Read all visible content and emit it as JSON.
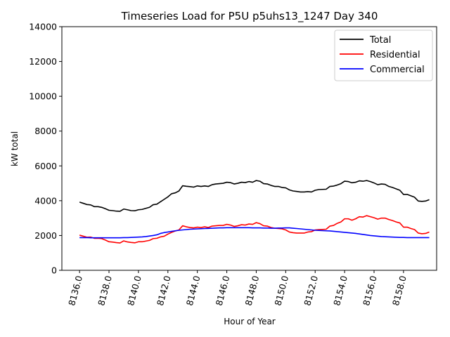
{
  "chart_data": {
    "type": "line",
    "title": "Timeseries Load for P5U p5uhs13_1247  Day 340",
    "xlabel": "Hour of Year",
    "ylabel": "kW total",
    "xlim": [
      8134.8,
      8160.25
    ],
    "ylim": [
      0,
      14000
    ],
    "xticks": [
      8136,
      8138,
      8140,
      8142,
      8144,
      8146,
      8148,
      8150,
      8152,
      8154,
      8156,
      8158
    ],
    "xtick_labels": [
      "8136.0",
      "8138.0",
      "8140.0",
      "8142.0",
      "8144.0",
      "8146.0",
      "8148.0",
      "8150.0",
      "8152.0",
      "8154.0",
      "8156.0",
      "8158.0"
    ],
    "yticks": [
      0,
      2000,
      4000,
      6000,
      8000,
      10000,
      12000,
      14000
    ],
    "ytick_labels": [
      "0",
      "2000",
      "4000",
      "6000",
      "8000",
      "10000",
      "12000",
      "14000"
    ],
    "grid": false,
    "legend_position": "top-right",
    "x_start": 8136,
    "x_step": 0.25,
    "series": [
      {
        "name": "Total",
        "color": "#000000",
        "values": [
          3920,
          3850,
          3780,
          3760,
          3660,
          3660,
          3620,
          3540,
          3450,
          3430,
          3400,
          3390,
          3520,
          3480,
          3430,
          3420,
          3480,
          3500,
          3560,
          3620,
          3770,
          3800,
          3940,
          4080,
          4220,
          4400,
          4450,
          4560,
          4860,
          4830,
          4810,
          4780,
          4850,
          4820,
          4850,
          4820,
          4920,
          4960,
          4980,
          5000,
          5060,
          5040,
          4960,
          5000,
          5060,
          5040,
          5100,
          5060,
          5160,
          5120,
          4980,
          4960,
          4880,
          4820,
          4820,
          4760,
          4740,
          4620,
          4560,
          4530,
          4500,
          4500,
          4520,
          4500,
          4600,
          4640,
          4650,
          4660,
          4820,
          4840,
          4900,
          4980,
          5120,
          5100,
          5030,
          5060,
          5140,
          5120,
          5160,
          5100,
          5020,
          4920,
          4960,
          4940,
          4820,
          4760,
          4680,
          4600,
          4360,
          4360,
          4280,
          4200,
          3980,
          3960,
          3980,
          4060
        ]
      },
      {
        "name": "Residential",
        "color": "#ff0000",
        "values": [
          2020,
          1960,
          1900,
          1910,
          1840,
          1840,
          1820,
          1740,
          1640,
          1620,
          1590,
          1570,
          1690,
          1630,
          1600,
          1580,
          1640,
          1640,
          1680,
          1720,
          1820,
          1840,
          1920,
          1960,
          2080,
          2180,
          2260,
          2320,
          2560,
          2500,
          2460,
          2440,
          2480,
          2460,
          2500,
          2460,
          2540,
          2560,
          2580,
          2580,
          2640,
          2600,
          2520,
          2560,
          2620,
          2600,
          2660,
          2640,
          2740,
          2680,
          2560,
          2540,
          2460,
          2420,
          2400,
          2380,
          2320,
          2200,
          2160,
          2140,
          2140,
          2140,
          2200,
          2220,
          2320,
          2340,
          2350,
          2360,
          2540,
          2580,
          2700,
          2780,
          2960,
          2960,
          2880,
          2960,
          3080,
          3060,
          3140,
          3080,
          3020,
          2940,
          3000,
          3000,
          2920,
          2860,
          2780,
          2720,
          2480,
          2480,
          2400,
          2340,
          2140,
          2100,
          2120,
          2200
        ]
      },
      {
        "name": "Commercial",
        "color": "#0000ff",
        "values": [
          1880,
          1880,
          1880,
          1870,
          1870,
          1870,
          1870,
          1870,
          1870,
          1870,
          1870,
          1870,
          1880,
          1880,
          1890,
          1900,
          1910,
          1920,
          1940,
          1970,
          2000,
          2040,
          2120,
          2170,
          2200,
          2240,
          2270,
          2300,
          2320,
          2340,
          2360,
          2370,
          2380,
          2390,
          2400,
          2410,
          2420,
          2430,
          2440,
          2440,
          2450,
          2450,
          2450,
          2450,
          2450,
          2450,
          2450,
          2440,
          2440,
          2440,
          2430,
          2430,
          2420,
          2420,
          2430,
          2430,
          2440,
          2440,
          2420,
          2400,
          2380,
          2360,
          2340,
          2320,
          2300,
          2290,
          2280,
          2270,
          2260,
          2240,
          2220,
          2200,
          2180,
          2160,
          2140,
          2120,
          2090,
          2060,
          2030,
          2000,
          1980,
          1960,
          1940,
          1930,
          1920,
          1910,
          1900,
          1890,
          1890,
          1880,
          1880,
          1880,
          1880,
          1880,
          1880,
          1880
        ]
      }
    ]
  }
}
